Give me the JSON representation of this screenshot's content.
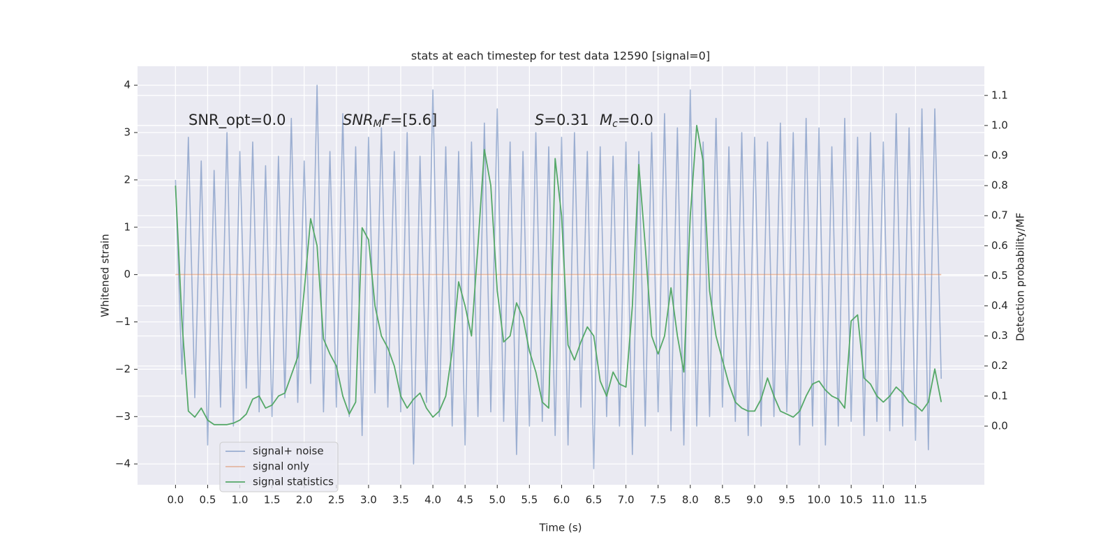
{
  "chart_data": {
    "type": "line",
    "title": "stats at each timestep for test data 12590 [signal=0]",
    "xlabel": "Time (s)",
    "ylabel": "Whitened strain",
    "y2label": "Detection probability/MF",
    "annotations": [
      [
        {
          "text": "SNR_opt=0.0"
        }
      ],
      [
        {
          "text": "SNR",
          "style": "italic"
        },
        {
          "text": "M",
          "style": "sub"
        },
        {
          "text": "F",
          "style": "italic"
        },
        {
          "text": "=[5.6]"
        }
      ],
      [
        {
          "text": "S",
          "style": "italic"
        },
        {
          "text": "=0.31"
        }
      ],
      [
        {
          "text": "M",
          "style": "italic"
        },
        {
          "text": "c",
          "style": "sub"
        },
        {
          "text": "=0.0"
        }
      ]
    ],
    "xlim": [
      -0.59,
      12.57
    ],
    "ylim": [
      -4.44,
      4.4
    ],
    "y2lim": [
      -0.195,
      1.197
    ],
    "xticks": [
      {
        "value": 0,
        "label": "0.0"
      },
      0.5,
      {
        "value": 1,
        "label": "1.0"
      },
      1.5,
      {
        "value": 2,
        "label": "2.0"
      },
      2.5,
      {
        "value": 3,
        "label": "3.0"
      },
      3.5,
      {
        "value": 4,
        "label": "4.0"
      },
      4.5,
      {
        "value": 5,
        "label": "5.0"
      },
      5.5,
      {
        "value": 6,
        "label": "6.0"
      },
      6.5,
      {
        "value": 7,
        "label": "7.0"
      },
      7.5,
      {
        "value": 8,
        "label": "8.0"
      },
      8.5,
      {
        "value": 9,
        "label": "9.0"
      },
      9.5,
      {
        "value": 10,
        "label": "10.0"
      },
      10.5,
      {
        "value": 11,
        "label": "11.0"
      },
      11.5
    ],
    "yticks": [
      {
        "value": -4,
        "label": "−4"
      },
      {
        "value": -3,
        "label": "−3"
      },
      {
        "value": -2,
        "label": "−2"
      },
      {
        "value": -1,
        "label": "−1"
      },
      0,
      1,
      2,
      3,
      4
    ],
    "y2ticks": [
      {
        "value": 0,
        "label": "0.0"
      },
      0.1,
      0.2,
      0.3,
      0.4,
      0.5,
      0.6,
      0.7,
      0.8,
      0.9,
      {
        "value": 1,
        "label": "1.0"
      },
      1.1
    ],
    "grid": true,
    "legend": "lower left",
    "x": [
      0,
      0.1,
      0.2,
      0.3,
      0.4,
      0.5,
      0.6,
      0.7,
      0.8,
      0.9,
      1,
      1.1,
      1.2,
      1.3,
      1.4,
      1.5,
      1.6,
      1.7,
      1.8,
      1.9,
      2,
      2.1,
      2.2,
      2.3,
      2.4,
      2.5,
      2.6,
      2.7,
      2.8,
      2.9,
      3,
      3.1,
      3.2,
      3.3,
      3.4,
      3.5,
      3.6,
      3.7,
      3.8,
      3.9,
      4,
      4.1,
      4.2,
      4.3,
      4.4,
      4.5,
      4.6,
      4.7,
      4.8,
      4.9,
      5,
      5.1,
      5.2,
      5.3,
      5.4,
      5.5,
      5.6,
      5.7,
      5.8,
      5.9,
      6,
      6.1,
      6.2,
      6.3,
      6.4,
      6.5,
      6.6,
      6.7,
      6.8,
      6.9,
      7,
      7.1,
      7.2,
      7.3,
      7.4,
      7.5,
      7.6,
      7.7,
      7.8,
      7.9,
      8,
      8.1,
      8.2,
      8.3,
      8.4,
      8.5,
      8.6,
      8.7,
      8.8,
      8.9,
      9,
      9.1,
      9.2,
      9.3,
      9.4,
      9.5,
      9.6,
      9.7,
      9.8,
      9.9,
      10,
      10.1,
      10.2,
      10.3,
      10.4,
      10.5,
      10.6,
      10.7,
      10.8,
      10.9,
      11,
      11.1,
      11.2,
      11.3,
      11.4,
      11.5,
      11.6,
      11.7,
      11.8,
      11.9
    ],
    "series": [
      {
        "name": "signal+ noise",
        "color": "#4c72b0",
        "alpha": 0.5,
        "values": [
          2.0,
          -2.1,
          2.9,
          -2.6,
          2.4,
          -3.6,
          2.2,
          -2.8,
          3.0,
          -3.2,
          2.6,
          -2.4,
          2.8,
          -2.9,
          2.3,
          -3.0,
          2.5,
          -2.6,
          3.3,
          -2.7,
          2.4,
          -2.3,
          4.0,
          -2.9,
          2.6,
          -2.8,
          3.4,
          -3.0,
          2.7,
          -3.4,
          2.9,
          -2.5,
          3.1,
          -2.8,
          2.6,
          -2.9,
          3.0,
          -4.0,
          2.5,
          -2.7,
          3.9,
          -3.0,
          2.7,
          -3.2,
          2.6,
          -3.6,
          2.8,
          -3.0,
          3.2,
          -2.9,
          3.5,
          -3.1,
          2.8,
          -3.8,
          2.6,
          -3.2,
          3.0,
          -3.1,
          2.7,
          -3.4,
          2.9,
          -3.6,
          3.0,
          -2.8,
          2.6,
          -4.1,
          2.7,
          -3.0,
          2.5,
          -3.2,
          2.8,
          -3.8,
          2.6,
          -3.2,
          3.0,
          -2.9,
          3.4,
          -3.3,
          3.1,
          -3.6,
          3.9,
          -3.2,
          2.8,
          -3.0,
          3.3,
          -2.8,
          2.7,
          -3.1,
          3.0,
          -3.4,
          2.9,
          -3.2,
          2.8,
          -3.0,
          3.2,
          -2.9,
          3.0,
          -3.6,
          3.3,
          -3.2,
          3.1,
          -3.6,
          2.7,
          -3.2,
          3.3,
          -3.1,
          2.9,
          -3.4,
          3.0,
          -3.1,
          2.8,
          -3.3,
          3.4,
          -3.2,
          3.1,
          -3.5,
          3.5,
          -3.7,
          3.5,
          -2.2
        ]
      },
      {
        "name": "signal only",
        "color": "#dd8452",
        "alpha": 0.5,
        "values": [
          0,
          0,
          0,
          0,
          0,
          0,
          0,
          0,
          0,
          0,
          0,
          0,
          0,
          0,
          0,
          0,
          0,
          0,
          0,
          0,
          0,
          0,
          0,
          0,
          0,
          0,
          0,
          0,
          0,
          0,
          0,
          0,
          0,
          0,
          0,
          0,
          0,
          0,
          0,
          0,
          0,
          0,
          0,
          0,
          0,
          0,
          0,
          0,
          0,
          0,
          0,
          0,
          0,
          0,
          0,
          0,
          0,
          0,
          0,
          0,
          0,
          0,
          0,
          0,
          0,
          0,
          0,
          0,
          0,
          0,
          0,
          0,
          0,
          0,
          0,
          0,
          0,
          0,
          0,
          0,
          0,
          0,
          0,
          0,
          0,
          0,
          0,
          0,
          0,
          0,
          0,
          0,
          0,
          0,
          0,
          0,
          0,
          0,
          0,
          0,
          0,
          0,
          0,
          0,
          0,
          0,
          0,
          0,
          0,
          0,
          0,
          0,
          0,
          0,
          0,
          0,
          0,
          0,
          0,
          0
        ]
      },
      {
        "name": "signal statistics",
        "color": "#55a868",
        "alpha": 1,
        "axis": "y2",
        "values": [
          0.8,
          0.35,
          0.05,
          0.03,
          0.06,
          0.02,
          0.005,
          0.005,
          0.005,
          0.01,
          0.02,
          0.04,
          0.09,
          0.1,
          0.06,
          0.07,
          0.1,
          0.11,
          0.17,
          0.23,
          0.45,
          0.69,
          0.6,
          0.29,
          0.24,
          0.2,
          0.1,
          0.04,
          0.08,
          0.66,
          0.62,
          0.4,
          0.3,
          0.26,
          0.2,
          0.1,
          0.06,
          0.09,
          0.11,
          0.06,
          0.03,
          0.05,
          0.1,
          0.25,
          0.48,
          0.4,
          0.3,
          0.6,
          0.92,
          0.8,
          0.45,
          0.28,
          0.3,
          0.41,
          0.36,
          0.25,
          0.18,
          0.08,
          0.06,
          0.89,
          0.7,
          0.27,
          0.22,
          0.28,
          0.33,
          0.3,
          0.15,
          0.1,
          0.18,
          0.14,
          0.13,
          0.4,
          0.87,
          0.6,
          0.3,
          0.24,
          0.3,
          0.46,
          0.3,
          0.18,
          0.7,
          1.0,
          0.88,
          0.45,
          0.3,
          0.22,
          0.14,
          0.08,
          0.06,
          0.05,
          0.05,
          0.09,
          0.16,
          0.1,
          0.05,
          0.04,
          0.03,
          0.05,
          0.1,
          0.14,
          0.15,
          0.12,
          0.1,
          0.09,
          0.06,
          0.35,
          0.37,
          0.16,
          0.14,
          0.1,
          0.08,
          0.1,
          0.13,
          0.11,
          0.08,
          0.07,
          0.05,
          0.08,
          0.19,
          0.08
        ]
      }
    ]
  }
}
